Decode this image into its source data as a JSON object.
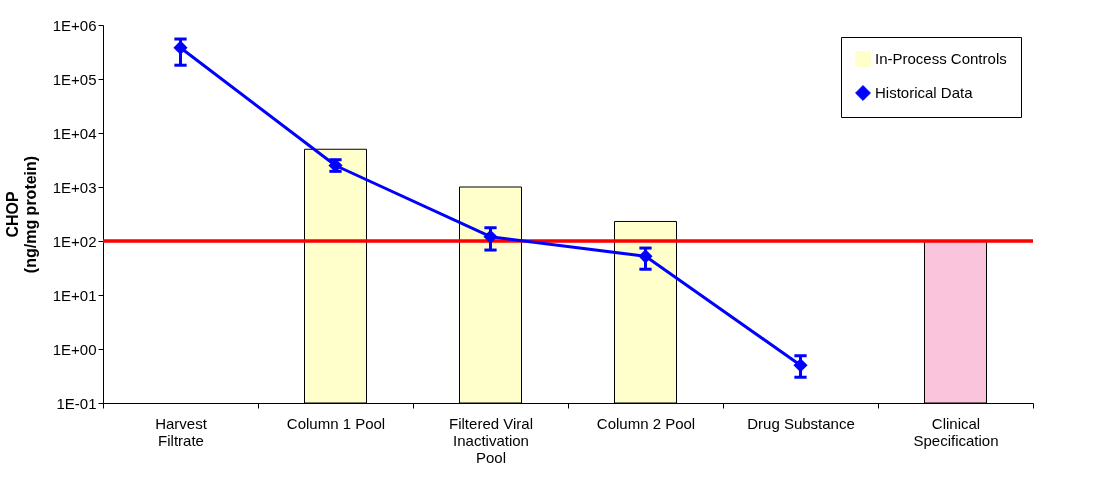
{
  "chart_data": {
    "type": "bar",
    "ylabel": "CHOP (ng/mg protein)",
    "categories": [
      "Harvest Filtrate",
      "Column 1 Pool",
      "Filtered Viral Inactivation Pool",
      "Column 2 Pool",
      "Drug Substance",
      "Clinical Specification"
    ],
    "series": [
      {
        "name": "In-Process Controls",
        "color": "#ffffcc",
        "values": [
          null,
          5000,
          1000,
          230,
          null,
          null
        ]
      },
      {
        "color": "#f9c4dc",
        "values": [
          null,
          null,
          null,
          null,
          null,
          100
        ]
      },
      {
        "name": "Historical Data",
        "type": "line",
        "color": "#0000ff",
        "values": [
          380000,
          2500,
          120,
          52,
          0.5,
          null
        ],
        "errors": [
          [
            180000,
            550000
          ],
          [
            1950,
            3200
          ],
          [
            68,
            176
          ],
          [
            30,
            74
          ],
          [
            0.3,
            0.75
          ],
          null
        ]
      }
    ],
    "log": "y",
    "ylim": [
      0.1,
      1000000
    ],
    "yticks": [
      {
        "value": 0.1,
        "label": "1E-01"
      },
      {
        "value": 1,
        "label": "1E+00"
      },
      {
        "value": 10,
        "label": "1E+01"
      },
      {
        "value": 100,
        "label": "1E+02"
      },
      {
        "value": 1000,
        "label": "1E+03"
      },
      {
        "value": 10000,
        "label": "1E+04"
      },
      {
        "value": 100000,
        "label": "1E+05"
      },
      {
        "value": 1000000,
        "label": "1E+06"
      }
    ],
    "ref_lines": [
      {
        "axis": "y",
        "value": 100,
        "color": "#ff0000"
      }
    ],
    "marker": "diamond",
    "legend": "top right"
  }
}
